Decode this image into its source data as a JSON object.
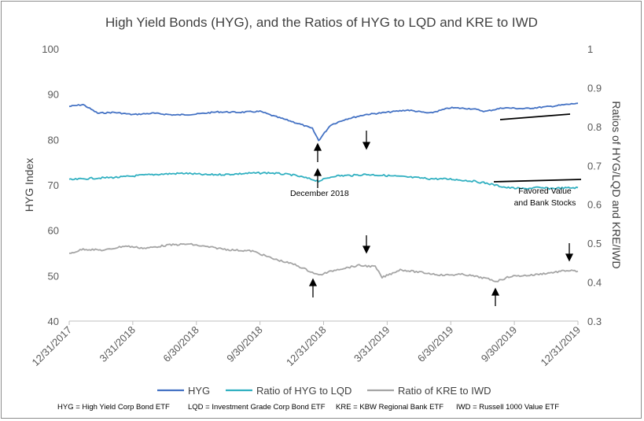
{
  "chart_data": {
    "type": "line",
    "title": "High Yield Bonds (HYG), and the Ratios of HYG to LQD and KRE to IWD",
    "ylabel": "HYG Index",
    "y2label": "Ratios of HYG/LQD and KRE/IWD",
    "ylim": [
      40,
      100
    ],
    "y2lim": [
      0.3,
      1.0
    ],
    "yticks": [
      "40",
      "50",
      "60",
      "70",
      "80",
      "90",
      "100"
    ],
    "y2ticks": [
      "0.3",
      "0.4",
      "0.5",
      "0.6",
      "0.7",
      "0.8",
      "0.9",
      "1"
    ],
    "xticks": [
      "12/31/2017",
      "3/31/2018",
      "6/30/2018",
      "9/30/2018",
      "12/31/2018",
      "3/31/2019",
      "6/30/2019",
      "9/30/2019",
      "12/31/2019"
    ],
    "grid": false,
    "legend_placement": "bottom",
    "series": [
      {
        "name": "HYG",
        "axis": "left",
        "color": "#4472c4",
        "points": [
          [
            "2017-12-31",
            87.3
          ],
          [
            "2018-01-20",
            87.7
          ],
          [
            "2018-02-10",
            85.8
          ],
          [
            "2018-03-05",
            86.0
          ],
          [
            "2018-04-01",
            85.5
          ],
          [
            "2018-05-01",
            85.8
          ],
          [
            "2018-06-01",
            85.4
          ],
          [
            "2018-07-01",
            85.6
          ],
          [
            "2018-08-01",
            86.1
          ],
          [
            "2018-09-01",
            86.0
          ],
          [
            "2018-10-01",
            86.2
          ],
          [
            "2018-10-20",
            85.2
          ],
          [
            "2018-11-15",
            84.0
          ],
          [
            "2018-12-01",
            83.2
          ],
          [
            "2018-12-15",
            82.4
          ],
          [
            "2018-12-24",
            79.8
          ],
          [
            "2019-01-10",
            83.2
          ],
          [
            "2019-02-01",
            84.5
          ],
          [
            "2019-03-01",
            85.5
          ],
          [
            "2019-04-01",
            86.0
          ],
          [
            "2019-05-01",
            86.5
          ],
          [
            "2019-06-01",
            85.8
          ],
          [
            "2019-07-01",
            87.0
          ],
          [
            "2019-08-01",
            86.8
          ],
          [
            "2019-08-20",
            86.2
          ],
          [
            "2019-09-15",
            87.0
          ],
          [
            "2019-10-15",
            86.8
          ],
          [
            "2019-11-15",
            87.2
          ],
          [
            "2019-12-31",
            88.0
          ]
        ]
      },
      {
        "name": "Ratio of HYG to LQD",
        "axis": "right",
        "color": "#31b0c1",
        "points": [
          [
            "2017-12-31",
            0.663
          ],
          [
            "2018-02-01",
            0.667
          ],
          [
            "2018-03-15",
            0.67
          ],
          [
            "2018-04-15",
            0.675
          ],
          [
            "2018-05-15",
            0.678
          ],
          [
            "2018-06-15",
            0.68
          ],
          [
            "2018-07-15",
            0.676
          ],
          [
            "2018-08-15",
            0.677
          ],
          [
            "2018-09-15",
            0.68
          ],
          [
            "2018-10-15",
            0.681
          ],
          [
            "2018-11-15",
            0.676
          ],
          [
            "2018-12-01",
            0.67
          ],
          [
            "2018-12-24",
            0.66
          ],
          [
            "2019-01-15",
            0.673
          ],
          [
            "2019-02-15",
            0.675
          ],
          [
            "2019-03-01",
            0.677
          ],
          [
            "2019-04-01",
            0.674
          ],
          [
            "2019-05-01",
            0.67
          ],
          [
            "2019-06-01",
            0.666
          ],
          [
            "2019-07-01",
            0.665
          ],
          [
            "2019-08-01",
            0.66
          ],
          [
            "2019-08-20",
            0.655
          ],
          [
            "2019-09-20",
            0.643
          ],
          [
            "2019-10-15",
            0.64
          ],
          [
            "2019-11-01",
            0.643
          ],
          [
            "2019-11-20",
            0.641
          ],
          [
            "2019-12-31",
            0.643
          ]
        ]
      },
      {
        "name": "Ratio of KRE to IWD",
        "axis": "right",
        "color": "#a5a5a5",
        "points": [
          [
            "2017-12-31",
            0.473
          ],
          [
            "2018-01-20",
            0.485
          ],
          [
            "2018-02-20",
            0.482
          ],
          [
            "2018-03-20",
            0.493
          ],
          [
            "2018-04-20",
            0.487
          ],
          [
            "2018-05-20",
            0.495
          ],
          [
            "2018-06-20",
            0.498
          ],
          [
            "2018-07-20",
            0.49
          ],
          [
            "2018-08-20",
            0.483
          ],
          [
            "2018-09-20",
            0.48
          ],
          [
            "2018-10-20",
            0.46
          ],
          [
            "2018-11-20",
            0.445
          ],
          [
            "2018-12-24",
            0.418
          ],
          [
            "2019-01-20",
            0.433
          ],
          [
            "2019-02-20",
            0.443
          ],
          [
            "2019-03-15",
            0.44
          ],
          [
            "2019-03-25",
            0.412
          ],
          [
            "2019-04-20",
            0.432
          ],
          [
            "2019-05-20",
            0.425
          ],
          [
            "2019-06-20",
            0.418
          ],
          [
            "2019-07-20",
            0.42
          ],
          [
            "2019-08-20",
            0.41
          ],
          [
            "2019-09-05",
            0.402
          ],
          [
            "2019-09-25",
            0.415
          ],
          [
            "2019-10-25",
            0.418
          ],
          [
            "2019-11-25",
            0.425
          ],
          [
            "2019-12-15",
            0.43
          ],
          [
            "2019-12-31",
            0.428
          ]
        ]
      }
    ]
  },
  "annotations": {
    "december_label": "December 2018",
    "favored_label_line1": "Favored Value",
    "favored_label_line2": "and Bank Stocks"
  },
  "footnotes": {
    "hyg": "HYG = High Yield Corp Bond ETF",
    "lqd": "LQD = Investment Grade Corp Bond ETF",
    "kre": "KRE = KBW Regional Bank ETF",
    "iwd": "IWD = Russell 1000 Value ETF"
  }
}
